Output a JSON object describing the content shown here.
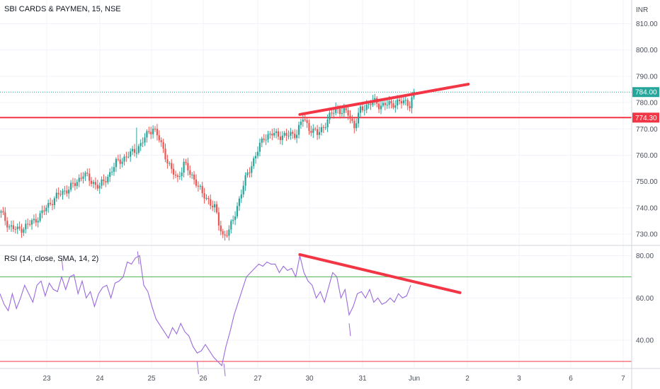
{
  "chart_data": [
    {
      "type": "candlestick",
      "title": "SBI CARDS & PAYMEN, 15, NSE",
      "currency": "INR",
      "price_axis": {
        "ylim": [
          726,
          819
        ],
        "ticks": [
          730,
          740,
          750,
          760,
          770,
          780,
          790,
          800,
          810
        ]
      },
      "date_labels": [
        "23",
        "24",
        "25",
        "26",
        "27",
        "30",
        "31",
        "Jun",
        "2",
        "3",
        "6",
        "7"
      ],
      "price_path": [
        [
          0,
          738
        ],
        [
          4,
          733
        ],
        [
          8,
          731.5
        ],
        [
          12,
          733
        ],
        [
          16,
          735
        ],
        [
          20,
          738
        ],
        [
          24,
          742
        ],
        [
          28,
          745
        ],
        [
          32,
          747
        ],
        [
          36,
          749
        ],
        [
          40,
          753
        ],
        [
          44,
          750
        ],
        [
          48,
          748
        ],
        [
          52,
          752
        ],
        [
          56,
          757
        ],
        [
          60,
          759
        ],
        [
          64,
          761
        ],
        [
          68,
          764
        ],
        [
          72,
          769
        ],
        [
          74,
          770.5
        ],
        [
          77,
          766
        ],
        [
          80,
          760
        ],
        [
          83,
          754
        ],
        [
          86,
          751
        ],
        [
          89,
          757
        ],
        [
          92,
          753
        ],
        [
          95,
          750
        ],
        [
          98,
          745
        ],
        [
          101,
          743
        ],
        [
          104,
          740
        ],
        [
          106,
          734
        ],
        [
          108,
          729.5
        ],
        [
          111,
          731
        ],
        [
          114,
          738
        ],
        [
          117,
          746
        ],
        [
          120,
          753
        ],
        [
          124,
          760
        ],
        [
          128,
          767
        ],
        [
          132,
          768
        ],
        [
          136,
          767.5
        ],
        [
          140,
          767.5
        ],
        [
          144,
          768.5
        ],
        [
          147,
          774
        ],
        [
          150,
          770.5
        ],
        [
          154,
          768
        ],
        [
          157,
          771
        ],
        [
          160,
          774.5
        ],
        [
          163,
          778
        ],
        [
          166,
          776.5
        ],
        [
          169,
          776
        ],
        [
          172,
          771
        ],
        [
          175,
          777
        ],
        [
          178,
          779
        ],
        [
          181,
          780.5
        ],
        [
          184,
          779
        ],
        [
          187,
          779.5
        ],
        [
          190,
          779
        ],
        [
          193,
          780.5
        ],
        [
          196,
          780
        ],
        [
          199,
          779.5
        ],
        [
          201,
          784
        ]
      ],
      "price_wicks": [
        [
          2,
          739,
          735
        ],
        [
          66,
          770.5,
          760
        ]
      ],
      "horizontal_levels": [
        {
          "price": 774.3,
          "color": "#f23645",
          "label": "774.30"
        }
      ],
      "last_price": {
        "price": 784,
        "color": "#26a69a",
        "label": "784.00"
      },
      "trendlines": [
        {
          "from": [
            146,
            775.5
          ],
          "to": [
            228,
            787
          ],
          "color": "#f23645"
        }
      ],
      "colors": {
        "up": "#26a69a",
        "down": "#ef5350"
      }
    },
    {
      "type": "line",
      "title": "RSI (14, close, SMA, 14, 2)",
      "rsi_axis": {
        "ylim": [
          27,
          84.5
        ],
        "ticks": [
          40,
          60,
          80
        ]
      },
      "overbought": 70,
      "oversold": 30,
      "rsi_series": [
        [
          0,
          62
        ],
        [
          2,
          57
        ],
        [
          4,
          54
        ],
        [
          6,
          62
        ],
        [
          8,
          55
        ],
        [
          10,
          60
        ],
        [
          12,
          66
        ],
        [
          14,
          62
        ],
        [
          16,
          58
        ],
        [
          18,
          66
        ],
        [
          20,
          68
        ],
        [
          22,
          61
        ],
        [
          24,
          67
        ],
        [
          26,
          64
        ],
        [
          28,
          63
        ],
        [
          30,
          70
        ],
        [
          32,
          64
        ],
        [
          34,
          70
        ],
        [
          36,
          71
        ],
        [
          38,
          62
        ],
        [
          40,
          68
        ],
        [
          42,
          60
        ],
        [
          44,
          63
        ],
        [
          46,
          56
        ],
        [
          48,
          62
        ],
        [
          50,
          65
        ],
        [
          52,
          66
        ],
        [
          54,
          60
        ],
        [
          56,
          67
        ],
        [
          58,
          68
        ],
        [
          60,
          70
        ],
        [
          62,
          77
        ],
        [
          64,
          76
        ],
        [
          66,
          79
        ],
        [
          68,
          80
        ],
        [
          70,
          66
        ],
        [
          72,
          63
        ],
        [
          74,
          56
        ],
        [
          76,
          50
        ],
        [
          78,
          47
        ],
        [
          80,
          44
        ],
        [
          82,
          41
        ],
        [
          84,
          46
        ],
        [
          86,
          43
        ],
        [
          88,
          48
        ],
        [
          90,
          44
        ],
        [
          92,
          42
        ],
        [
          94,
          37
        ],
        [
          96,
          34
        ],
        [
          98,
          35
        ],
        [
          100,
          38
        ],
        [
          102,
          35
        ],
        [
          104,
          32
        ],
        [
          106,
          30
        ],
        [
          108,
          28
        ],
        [
          110,
          37
        ],
        [
          112,
          44
        ],
        [
          114,
          52
        ],
        [
          116,
          58
        ],
        [
          118,
          64
        ],
        [
          120,
          70
        ],
        [
          122,
          72
        ],
        [
          124,
          74
        ],
        [
          126,
          76
        ],
        [
          128,
          75
        ],
        [
          130,
          77
        ],
        [
          132,
          76
        ],
        [
          134,
          76
        ],
        [
          136,
          72
        ],
        [
          138,
          75
        ],
        [
          140,
          73
        ],
        [
          142,
          74
        ],
        [
          144,
          70
        ],
        [
          146,
          80
        ],
        [
          148,
          72
        ],
        [
          150,
          68
        ],
        [
          152,
          66
        ],
        [
          154,
          60
        ],
        [
          156,
          63
        ],
        [
          158,
          58
        ],
        [
          160,
          65
        ],
        [
          162,
          72
        ],
        [
          164,
          70
        ],
        [
          166,
          60
        ],
        [
          168,
          64
        ],
        [
          170,
          52
        ],
        [
          172,
          56
        ],
        [
          174,
          62
        ],
        [
          176,
          63
        ],
        [
          178,
          60
        ],
        [
          180,
          64
        ],
        [
          182,
          58
        ],
        [
          184,
          60
        ],
        [
          186,
          57
        ],
        [
          188,
          58
        ],
        [
          190,
          60
        ],
        [
          192,
          58
        ],
        [
          194,
          62
        ],
        [
          196,
          60
        ],
        [
          198,
          61
        ],
        [
          200,
          66
        ]
      ],
      "rsi_ticks": [
        [
          30,
          79
        ],
        [
          67,
          82
        ],
        [
          96,
          30
        ],
        [
          109,
          29
        ],
        [
          170,
          48
        ]
      ],
      "trendlines": [
        {
          "from": [
            146,
            80.5
          ],
          "to": [
            224,
            62.5
          ],
          "color": "#f23645"
        }
      ],
      "colors": {
        "line": "#9c6ade",
        "overbought_line": "#4caf50",
        "oversold_line": "#f23645"
      }
    }
  ]
}
